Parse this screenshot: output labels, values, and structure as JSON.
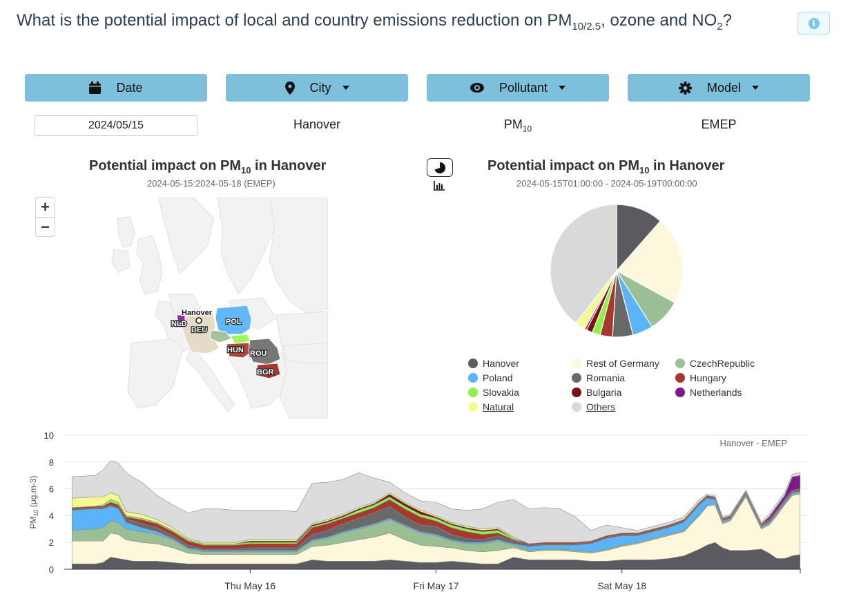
{
  "header": {
    "title_main": "What is the potential impact of local and country emissions reduction on PM",
    "title_sub": "10/2.5",
    "title_mid": ", ozone and NO",
    "title_sub2": "2",
    "title_end": "?",
    "info_icon": "info-icon"
  },
  "controls": {
    "date_label": "Date",
    "city_label": "City",
    "pollutant_label": "Pollutant",
    "model_label": "Model",
    "date_value": "2024/05/15",
    "city_value": "Hanover",
    "pollutant_main": "PM",
    "pollutant_sub": "10",
    "model_value": "EMEP"
  },
  "map_panel": {
    "title_pre": "Potential impact on PM",
    "title_sub": "10",
    "title_post": " in Hanover",
    "subtitle": "2024-05-15:2024-05-18 (EMEP)",
    "zoom_in": "+",
    "zoom_out": "−",
    "city_label": "Hanover",
    "country_labels": [
      "NLD",
      "DEU",
      "POL",
      "HUN",
      "ROU",
      "BGR"
    ]
  },
  "pie_panel": {
    "title_pre": "Potential impact on PM",
    "title_sub": "10",
    "title_post": " in Hanover",
    "subtitle": "2024-05-15T01:00:00 - 2024-05-19T00:00:00"
  },
  "chart_data": [
    {
      "type": "pie",
      "title": "Potential impact on PM10 in Hanover",
      "subtitle": "2024-05-15T01:00:00 - 2024-05-19T00:00:00",
      "slices": [
        {
          "name": "Hanover",
          "value": 11.5,
          "color": "#5a5a60"
        },
        {
          "name": "Rest of Germany",
          "value": 21.5,
          "color": "#fdf8dc"
        },
        {
          "name": "CzechRepublic",
          "value": 8.0,
          "color": "#9bbf95"
        },
        {
          "name": "Poland",
          "value": 5.0,
          "color": "#5ab4f7"
        },
        {
          "name": "Romania",
          "value": 5.0,
          "color": "#696969"
        },
        {
          "name": "Hungary",
          "value": 3.0,
          "color": "#a6382f"
        },
        {
          "name": "Slovakia",
          "value": 2.0,
          "color": "#8ef14a"
        },
        {
          "name": "Bulgaria",
          "value": 1.5,
          "color": "#7a1414"
        },
        {
          "name": "Netherlands",
          "value": 0.5,
          "color": "#7d1a8a"
        },
        {
          "name": "Natural",
          "value": 2.5,
          "color": "#f6f890"
        },
        {
          "name": "Others",
          "value": 39.5,
          "color": "#d9d9d9"
        }
      ],
      "legend": {
        "columns": [
          [
            "Hanover",
            "Poland",
            "Slovakia",
            "Natural"
          ],
          [
            "Rest of Germany",
            "Romania",
            "Bulgaria",
            "Others"
          ],
          [
            "CzechRepublic",
            "Hungary",
            "Netherlands"
          ]
        ],
        "underlined": [
          "Natural",
          "Others"
        ]
      }
    },
    {
      "type": "area",
      "stacked": true,
      "annotation": "Hanover - EMEP",
      "ylabel_main": "PM",
      "ylabel_sub": "10",
      "ylabel_unit": " (μg.m-3)",
      "ylim": [
        0,
        10
      ],
      "yticks": [
        0,
        2,
        4,
        6,
        8,
        10
      ],
      "x_range": [
        "2024-05-15T01:00",
        "2024-05-19T00:00"
      ],
      "x_ticks": [
        {
          "label": "Thu May 16",
          "x": 24
        },
        {
          "label": "Fri May 17",
          "x": 48
        },
        {
          "label": "Sat May 18",
          "x": 72
        }
      ],
      "x_end": 96,
      "x": [
        1,
        4,
        5,
        6,
        7,
        8,
        9,
        10,
        12,
        14,
        16,
        18,
        20,
        22,
        24,
        26,
        28,
        30,
        32,
        34,
        36,
        38,
        40,
        42,
        44,
        46,
        48,
        50,
        52,
        54,
        56,
        58,
        60,
        62,
        64,
        66,
        68,
        70,
        72,
        74,
        76,
        78,
        80,
        82,
        83,
        84,
        85,
        86,
        88,
        90,
        91,
        92,
        93,
        94,
        95
      ],
      "series": [
        {
          "name": "Hanover",
          "color": "#5a5a60",
          "values": [
            0.4,
            0.4,
            0.5,
            0.9,
            0.8,
            0.7,
            0.6,
            0.6,
            0.6,
            0.5,
            0.4,
            0.4,
            0.4,
            0.4,
            0.4,
            0.4,
            0.4,
            0.4,
            0.7,
            0.6,
            0.6,
            0.6,
            0.6,
            0.7,
            0.6,
            0.5,
            0.5,
            0.6,
            0.5,
            0.4,
            0.4,
            0.9,
            0.7,
            0.7,
            0.7,
            0.7,
            0.6,
            0.6,
            0.7,
            0.7,
            0.7,
            0.8,
            1.0,
            1.5,
            1.8,
            2.0,
            1.6,
            1.4,
            1.4,
            1.5,
            1.2,
            0.8,
            0.8,
            1.0,
            1.1
          ]
        },
        {
          "name": "Rest of Germany",
          "color": "#fdf8dc",
          "values": [
            1.7,
            1.7,
            1.6,
            1.8,
            1.8,
            1.5,
            1.5,
            1.4,
            1.3,
            1.1,
            0.8,
            0.7,
            0.7,
            0.7,
            0.7,
            0.7,
            0.7,
            0.7,
            1.0,
            1.2,
            1.4,
            1.6,
            1.8,
            2.0,
            1.6,
            1.3,
            1.2,
            1.0,
            0.9,
            0.9,
            1.0,
            0.7,
            0.6,
            0.7,
            0.7,
            0.6,
            0.6,
            0.8,
            1.0,
            1.2,
            1.5,
            1.7,
            1.8,
            2.5,
            2.9,
            2.8,
            1.8,
            2.2,
            4.0,
            1.5,
            2.1,
            3.2,
            4.0,
            4.5,
            4.5
          ]
        },
        {
          "name": "CzechRepublic",
          "color": "#9bbf95",
          "values": [
            0.8,
            0.9,
            1.0,
            0.9,
            0.9,
            0.8,
            0.8,
            0.8,
            0.7,
            0.6,
            0.3,
            0.2,
            0.2,
            0.2,
            0.2,
            0.2,
            0.2,
            0.2,
            0.4,
            0.5,
            0.7,
            0.8,
            0.9,
            1.0,
            1.0,
            0.9,
            0.8,
            0.5,
            0.5,
            0.6,
            0.7,
            0.2,
            0.1,
            0.1,
            0.1,
            0.1,
            0.1,
            0.1,
            0.1,
            0.1,
            0.1,
            0.1,
            0.1,
            0.1,
            0.1,
            0.1,
            0.1,
            0.1,
            0.1,
            0.1,
            0.1,
            0.1,
            0.1,
            0.1,
            0.1
          ]
        },
        {
          "name": "Poland",
          "color": "#5ab4f7",
          "values": [
            1.5,
            1.5,
            1.4,
            1.1,
            1.0,
            0.5,
            0.4,
            0.3,
            0.2,
            0.1,
            0.1,
            0.1,
            0.1,
            0.1,
            0.1,
            0.1,
            0.1,
            0.1,
            0.1,
            0.1,
            0.1,
            0.1,
            0.1,
            0.1,
            0.1,
            0.1,
            0.1,
            0.1,
            0.1,
            0.1,
            0.1,
            0.1,
            0.3,
            0.3,
            0.3,
            0.4,
            0.6,
            0.8,
            0.7,
            0.5,
            0.5,
            0.5,
            0.6,
            0.7,
            0.5,
            0.3,
            0.1,
            0.1,
            0.1,
            0.1,
            0.1,
            0.1,
            0.1,
            0.1,
            0.1
          ]
        },
        {
          "name": "Romania",
          "color": "#696969",
          "values": [
            0.1,
            0.1,
            0.1,
            0.1,
            0.1,
            0.2,
            0.3,
            0.3,
            0.3,
            0.2,
            0.2,
            0.1,
            0.1,
            0.1,
            0.2,
            0.2,
            0.2,
            0.2,
            0.4,
            0.5,
            0.6,
            0.7,
            0.8,
            0.9,
            0.6,
            0.5,
            0.6,
            0.4,
            0.3,
            0.2,
            0.3,
            0.2,
            0.1,
            0.1,
            0.1,
            0.1,
            0.1,
            0.1,
            0.1,
            0.1,
            0.1,
            0.1,
            0.1,
            0.1,
            0.1,
            0.1,
            0.1,
            0.1,
            0.1,
            0.1,
            0.1,
            0.1,
            0.1,
            0.1,
            0.1
          ]
        },
        {
          "name": "Hungary",
          "color": "#a6382f",
          "values": [
            0.1,
            0.1,
            0.1,
            0.2,
            0.2,
            0.2,
            0.2,
            0.3,
            0.3,
            0.3,
            0.3,
            0.3,
            0.3,
            0.3,
            0.3,
            0.3,
            0.3,
            0.3,
            0.5,
            0.5,
            0.4,
            0.4,
            0.4,
            0.5,
            0.6,
            0.6,
            0.4,
            0.5,
            0.5,
            0.4,
            0.2,
            0.1,
            0.1,
            0.1,
            0.1,
            0.1,
            0.1,
            0.1,
            0.1,
            0.1,
            0.1,
            0.1,
            0.1,
            0.1,
            0.1,
            0.1,
            0.1,
            0.1,
            0.1,
            0.1,
            0.1,
            0.1,
            0.1,
            0.1,
            0.1
          ]
        },
        {
          "name": "Slovakia",
          "color": "#8ef14a",
          "values": [
            0.0,
            0.0,
            0.1,
            0.2,
            0.2,
            0.1,
            0.1,
            0.1,
            0.1,
            0.1,
            0.1,
            0.1,
            0.1,
            0.1,
            0.1,
            0.1,
            0.1,
            0.1,
            0.1,
            0.1,
            0.1,
            0.2,
            0.2,
            0.2,
            0.2,
            0.2,
            0.2,
            0.2,
            0.2,
            0.2,
            0.2,
            0.1,
            0.0,
            0.0,
            0.0,
            0.0,
            0.0,
            0.0,
            0.0,
            0.0,
            0.0,
            0.0,
            0.0,
            0.0,
            0.0,
            0.0,
            0.0,
            0.0,
            0.0,
            0.0,
            0.0,
            0.0,
            0.0,
            0.0,
            0.0
          ]
        },
        {
          "name": "Bulgaria",
          "color": "#7a1414",
          "values": [
            0.0,
            0.0,
            0.0,
            0.0,
            0.0,
            0.0,
            0.0,
            0.0,
            0.0,
            0.0,
            0.0,
            0.0,
            0.0,
            0.0,
            0.1,
            0.1,
            0.1,
            0.1,
            0.1,
            0.1,
            0.1,
            0.1,
            0.1,
            0.2,
            0.2,
            0.2,
            0.1,
            0.1,
            0.1,
            0.1,
            0.1,
            0.0,
            0.0,
            0.0,
            0.0,
            0.0,
            0.0,
            0.0,
            0.0,
            0.0,
            0.0,
            0.0,
            0.0,
            0.0,
            0.0,
            0.0,
            0.0,
            0.0,
            0.0,
            0.0,
            0.0,
            0.0,
            0.0,
            0.0,
            0.0
          ]
        },
        {
          "name": "Netherlands",
          "color": "#7d1a8a",
          "values": [
            0.0,
            0.0,
            0.0,
            0.0,
            0.0,
            0.0,
            0.0,
            0.0,
            0.0,
            0.0,
            0.0,
            0.0,
            0.0,
            0.0,
            0.0,
            0.0,
            0.0,
            0.0,
            0.0,
            0.0,
            0.0,
            0.0,
            0.0,
            0.0,
            0.0,
            0.0,
            0.0,
            0.0,
            0.0,
            0.0,
            0.0,
            0.0,
            0.0,
            0.0,
            0.0,
            0.0,
            0.0,
            0.0,
            0.0,
            0.0,
            0.0,
            0.0,
            0.0,
            0.0,
            0.0,
            0.0,
            0.0,
            0.0,
            0.0,
            0.0,
            0.2,
            0.3,
            0.3,
            1.0,
            1.0
          ]
        },
        {
          "name": "Natural",
          "color": "#f6f890",
          "values": [
            0.7,
            0.7,
            0.6,
            0.5,
            0.5,
            0.3,
            0.3,
            0.3,
            0.2,
            0.2,
            0.1,
            0.1,
            0.1,
            0.1,
            0.1,
            0.1,
            0.1,
            0.1,
            0.1,
            0.1,
            0.1,
            0.1,
            0.1,
            0.1,
            0.1,
            0.1,
            0.1,
            0.1,
            0.1,
            0.1,
            0.1,
            0.1,
            0.0,
            0.0,
            0.0,
            0.0,
            0.0,
            0.0,
            0.0,
            0.0,
            0.0,
            0.0,
            0.0,
            0.0,
            0.0,
            0.0,
            0.0,
            0.0,
            0.0,
            0.0,
            0.0,
            0.0,
            0.0,
            0.0,
            0.0
          ]
        },
        {
          "name": "Others",
          "color": "#dcdcdc",
          "values": [
            1.6,
            1.6,
            2.0,
            2.4,
            2.4,
            2.9,
            2.6,
            2.4,
            1.8,
            1.7,
            1.9,
            2.5,
            2.5,
            2.4,
            2.2,
            2.2,
            2.2,
            2.1,
            3.0,
            2.8,
            2.6,
            2.6,
            1.8,
            0.8,
            0.7,
            0.7,
            1.0,
            1.0,
            1.2,
            1.5,
            1.9,
            2.8,
            2.6,
            2.6,
            2.5,
            1.9,
            0.8,
            0.8,
            0.4,
            0.2,
            0.2,
            0.2,
            0.2,
            0.2,
            0.1,
            0.1,
            0.1,
            0.1,
            0.1,
            0.1,
            0.2,
            0.2,
            0.2,
            0.2,
            0.2
          ]
        }
      ]
    }
  ]
}
